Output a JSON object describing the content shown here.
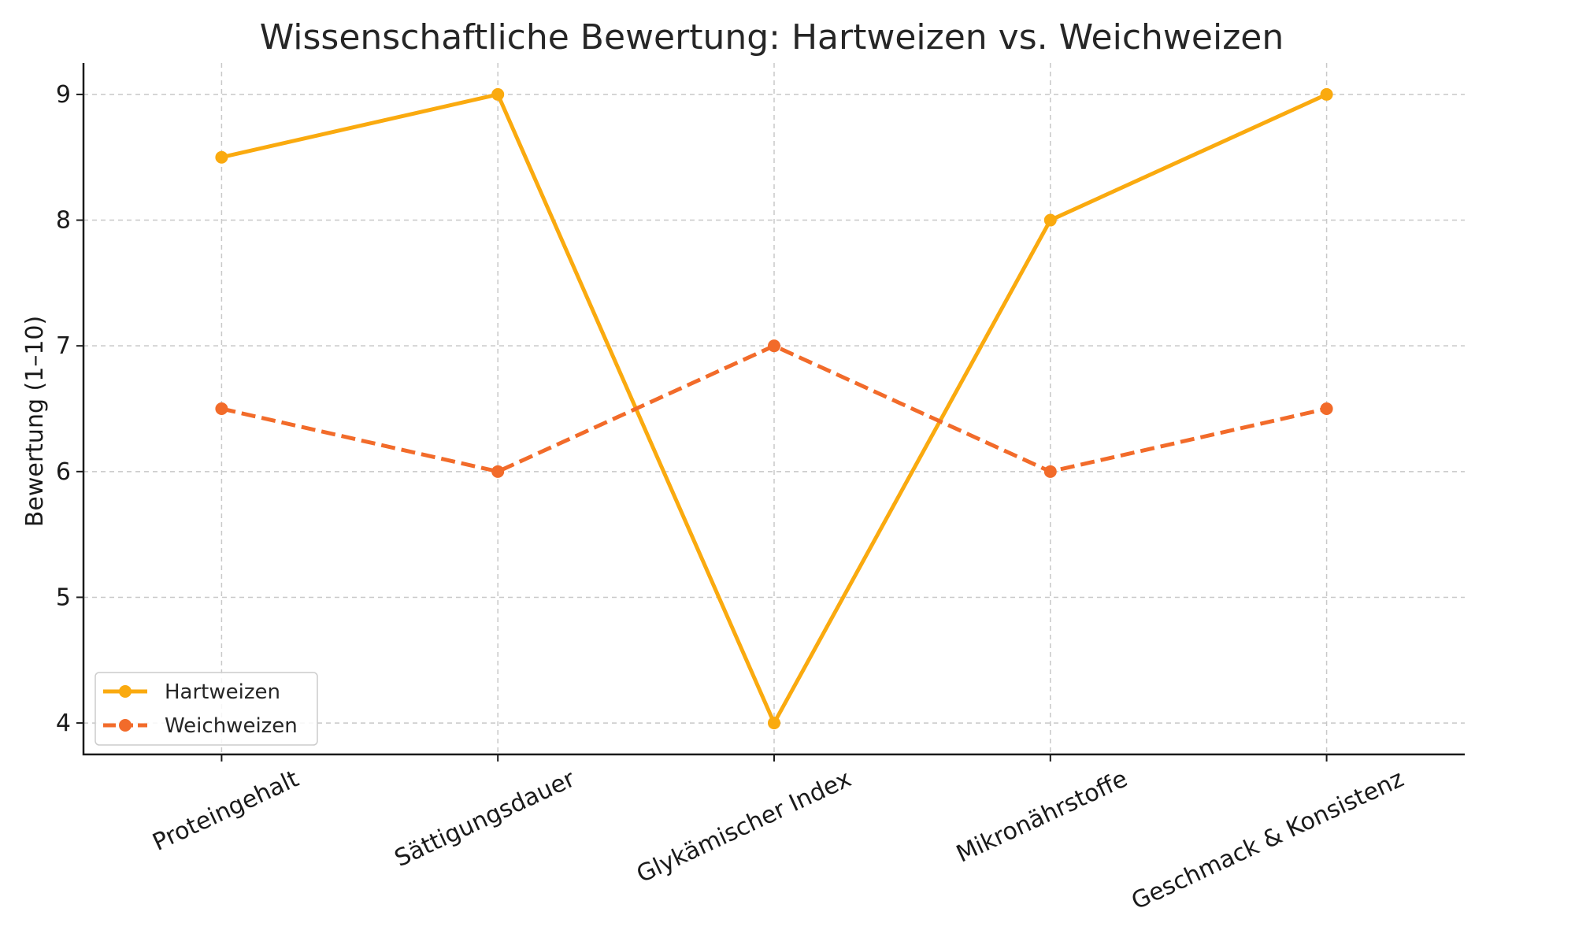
{
  "chart_data": {
    "type": "line",
    "title": "Wissenschaftliche Bewertung: Hartweizen vs. Weichweizen",
    "xlabel": "",
    "ylabel": "Bewertung (1–10)",
    "categories": [
      "Proteingehalt",
      "Sättigungsdauer",
      "Glykämischer Index",
      "Mikronährstoffe",
      "Geschmack & Konsistenz"
    ],
    "ylim": [
      3.75,
      9.25
    ],
    "yticks": [
      4,
      5,
      6,
      7,
      8,
      9
    ],
    "grid": true,
    "legend_position": "lower-left",
    "series": [
      {
        "name": "Hartweizen",
        "values": [
          8.5,
          9,
          4,
          8,
          9
        ],
        "color": "#FAAA0F",
        "linestyle": "solid",
        "marker": "circle"
      },
      {
        "name": "Weichweizen",
        "values": [
          6.5,
          6,
          7,
          6,
          6.5
        ],
        "color": "#F26B2A",
        "linestyle": "dashed",
        "marker": "circle"
      }
    ]
  }
}
